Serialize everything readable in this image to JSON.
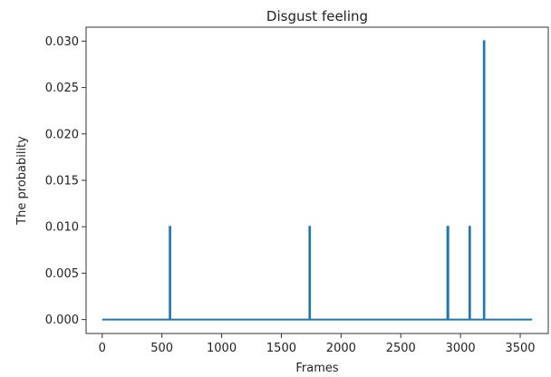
{
  "chart_data": {
    "type": "line",
    "title": "Disgust feeling",
    "xlabel": "Frames",
    "ylabel": "The probability",
    "xlim": [
      -135,
      3735
    ],
    "ylim": [
      -0.0015,
      0.0315
    ],
    "xticks": [
      0,
      500,
      1000,
      1500,
      2000,
      2500,
      3000,
      3500
    ],
    "xtick_labels": [
      "0",
      "500",
      "1000",
      "1500",
      "2000",
      "2500",
      "3000",
      "3500"
    ],
    "yticks": [
      0.0,
      0.005,
      0.01,
      0.015,
      0.02,
      0.025,
      0.03
    ],
    "ytick_labels": [
      "0.000",
      "0.005",
      "0.010",
      "0.015",
      "0.020",
      "0.025",
      "0.030"
    ],
    "grid": false,
    "series": [
      {
        "color": "#1f77b4",
        "points": [
          [
            0,
            0
          ],
          [
            565,
            0
          ],
          [
            565,
            0.01
          ],
          [
            570,
            0.01
          ],
          [
            570,
            0
          ],
          [
            1735,
            0
          ],
          [
            1735,
            0.01
          ],
          [
            1740,
            0.01
          ],
          [
            1740,
            0
          ],
          [
            2890,
            0
          ],
          [
            2890,
            0.01
          ],
          [
            2898,
            0.01
          ],
          [
            2898,
            0
          ],
          [
            3075,
            0
          ],
          [
            3075,
            0.01
          ],
          [
            3080,
            0.01
          ],
          [
            3080,
            0
          ],
          [
            3195,
            0
          ],
          [
            3195,
            0.03
          ],
          [
            3200,
            0.03
          ],
          [
            3200,
            0
          ],
          [
            3600,
            0
          ]
        ]
      }
    ]
  }
}
